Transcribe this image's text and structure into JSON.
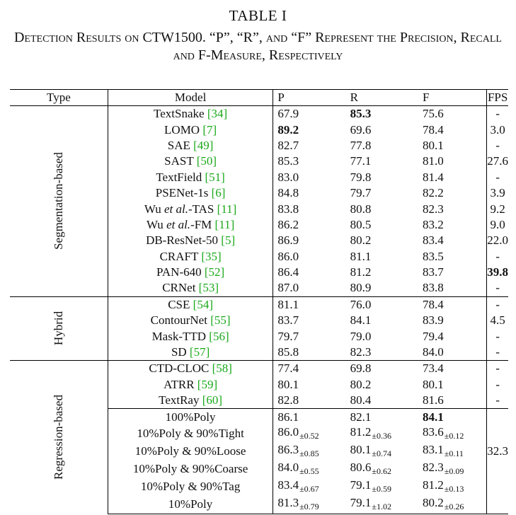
{
  "caption": {
    "table_number": "TABLE I",
    "title": "Detection Results on CTW1500. “P”, “R”, and “F” Represent the Precision, Recall and F-Measure, Respectively"
  },
  "headers": [
    "Type",
    "Model",
    "P",
    "R",
    "F",
    "FPS"
  ],
  "groups": [
    {
      "type": "Segmentation-based",
      "rows": [
        {
          "model": "TextSnake",
          "ref": "[34]",
          "p": "67.9",
          "r": "85.3",
          "f": "75.6",
          "fps": "-",
          "bold": [
            "r"
          ]
        },
        {
          "model": "LOMO",
          "ref": "[7]",
          "p": "89.2",
          "r": "69.6",
          "f": "78.4",
          "fps": "3.0",
          "bold": [
            "p"
          ]
        },
        {
          "model": "SAE",
          "ref": "[49]",
          "p": "82.7",
          "r": "77.8",
          "f": "80.1",
          "fps": "-"
        },
        {
          "model": "SAST",
          "ref": "[50]",
          "p": "85.3",
          "r": "77.1",
          "f": "81.0",
          "fps": "27.6"
        },
        {
          "model": "TextField",
          "ref": "[51]",
          "p": "83.0",
          "r": "79.8",
          "f": "81.4",
          "fps": "-"
        },
        {
          "model": "PSENet-1s",
          "ref": "[6]",
          "p": "84.8",
          "r": "79.7",
          "f": "82.2",
          "fps": "3.9"
        },
        {
          "model": "Wu et al.-TAS",
          "ref": "[11]",
          "p": "83.8",
          "r": "80.8",
          "f": "82.3",
          "fps": "9.2"
        },
        {
          "model": "Wu et al.-FM",
          "ref": "[11]",
          "p": "86.2",
          "r": "80.5",
          "f": "83.2",
          "fps": "9.0"
        },
        {
          "model": "DB-ResNet-50",
          "ref": "[5]",
          "p": "86.9",
          "r": "80.2",
          "f": "83.4",
          "fps": "22.0"
        },
        {
          "model": "CRAFT",
          "ref": "[35]",
          "p": "86.0",
          "r": "81.1",
          "f": "83.5",
          "fps": "-"
        },
        {
          "model": "PAN-640",
          "ref": "[52]",
          "p": "86.4",
          "r": "81.2",
          "f": "83.7",
          "fps": "39.8",
          "bold": [
            "fps"
          ]
        },
        {
          "model": "CRNet",
          "ref": "[53]",
          "p": "87.0",
          "r": "80.9",
          "f": "83.8",
          "fps": "-"
        }
      ]
    },
    {
      "type": "Hybrid",
      "rows": [
        {
          "model": "CSE",
          "ref": "[54]",
          "p": "81.1",
          "r": "76.0",
          "f": "78.4",
          "fps": "-"
        },
        {
          "model": "ContourNet",
          "ref": "[55]",
          "p": "83.7",
          "r": "84.1",
          "f": "83.9",
          "fps": "4.5"
        },
        {
          "model": "Mask-TTD",
          "ref": "[56]",
          "p": "79.7",
          "r": "79.0",
          "f": "79.4",
          "fps": "-"
        },
        {
          "model": "SD",
          "ref": "[57]",
          "p": "85.8",
          "r": "82.3",
          "f": "84.0",
          "fps": "-"
        }
      ]
    },
    {
      "type": "Regression-based",
      "rows": [
        {
          "model": "CTD-CLOC",
          "ref": "[58]",
          "p": "77.4",
          "r": "69.8",
          "f": "73.4",
          "fps": "-"
        },
        {
          "model": "ATRR",
          "ref": "[59]",
          "p": "80.1",
          "r": "80.2",
          "f": "80.1",
          "fps": "-"
        },
        {
          "model": "TextRay",
          "ref": "[60]",
          "p": "82.8",
          "r": "80.4",
          "f": "81.6",
          "fps": "-"
        },
        {
          "model": "100%Poly",
          "ref": "",
          "p": "86.1",
          "r": "82.1",
          "f": "84.1",
          "fps": "",
          "bold": [
            "f"
          ],
          "sep": true
        },
        {
          "model": "10%Poly & 90%Tight",
          "ref": "",
          "p": "86.0",
          "p_sd": "±0.52",
          "r": "81.2",
          "r_sd": "±0.36",
          "f": "83.6",
          "f_sd": "±0.12",
          "fps": ""
        },
        {
          "model": "10%Poly & 90%Loose",
          "ref": "",
          "p": "86.3",
          "p_sd": "±0.85",
          "r": "80.1",
          "r_sd": "±0.74",
          "f": "83.1",
          "f_sd": "±0.11",
          "fps": "32.3"
        },
        {
          "model": "10%Poly & 90%Coarse",
          "ref": "",
          "p": "84.0",
          "p_sd": "±0.55",
          "r": "80.6",
          "r_sd": "±0.62",
          "f": "82.3",
          "f_sd": "±0.09",
          "fps": ""
        },
        {
          "model": "10%Poly & 90%Tag",
          "ref": "",
          "p": "83.4",
          "p_sd": "±0.67",
          "r": "79.1",
          "r_sd": "±0.59",
          "f": "81.2",
          "f_sd": "±0.13",
          "fps": ""
        },
        {
          "model": "10%Poly",
          "ref": "",
          "p": "81.3",
          "p_sd": "±0.79",
          "r": "79.1",
          "r_sd": "±1.02",
          "f": "80.2",
          "f_sd": "±0.26",
          "fps": ""
        }
      ]
    }
  ]
}
